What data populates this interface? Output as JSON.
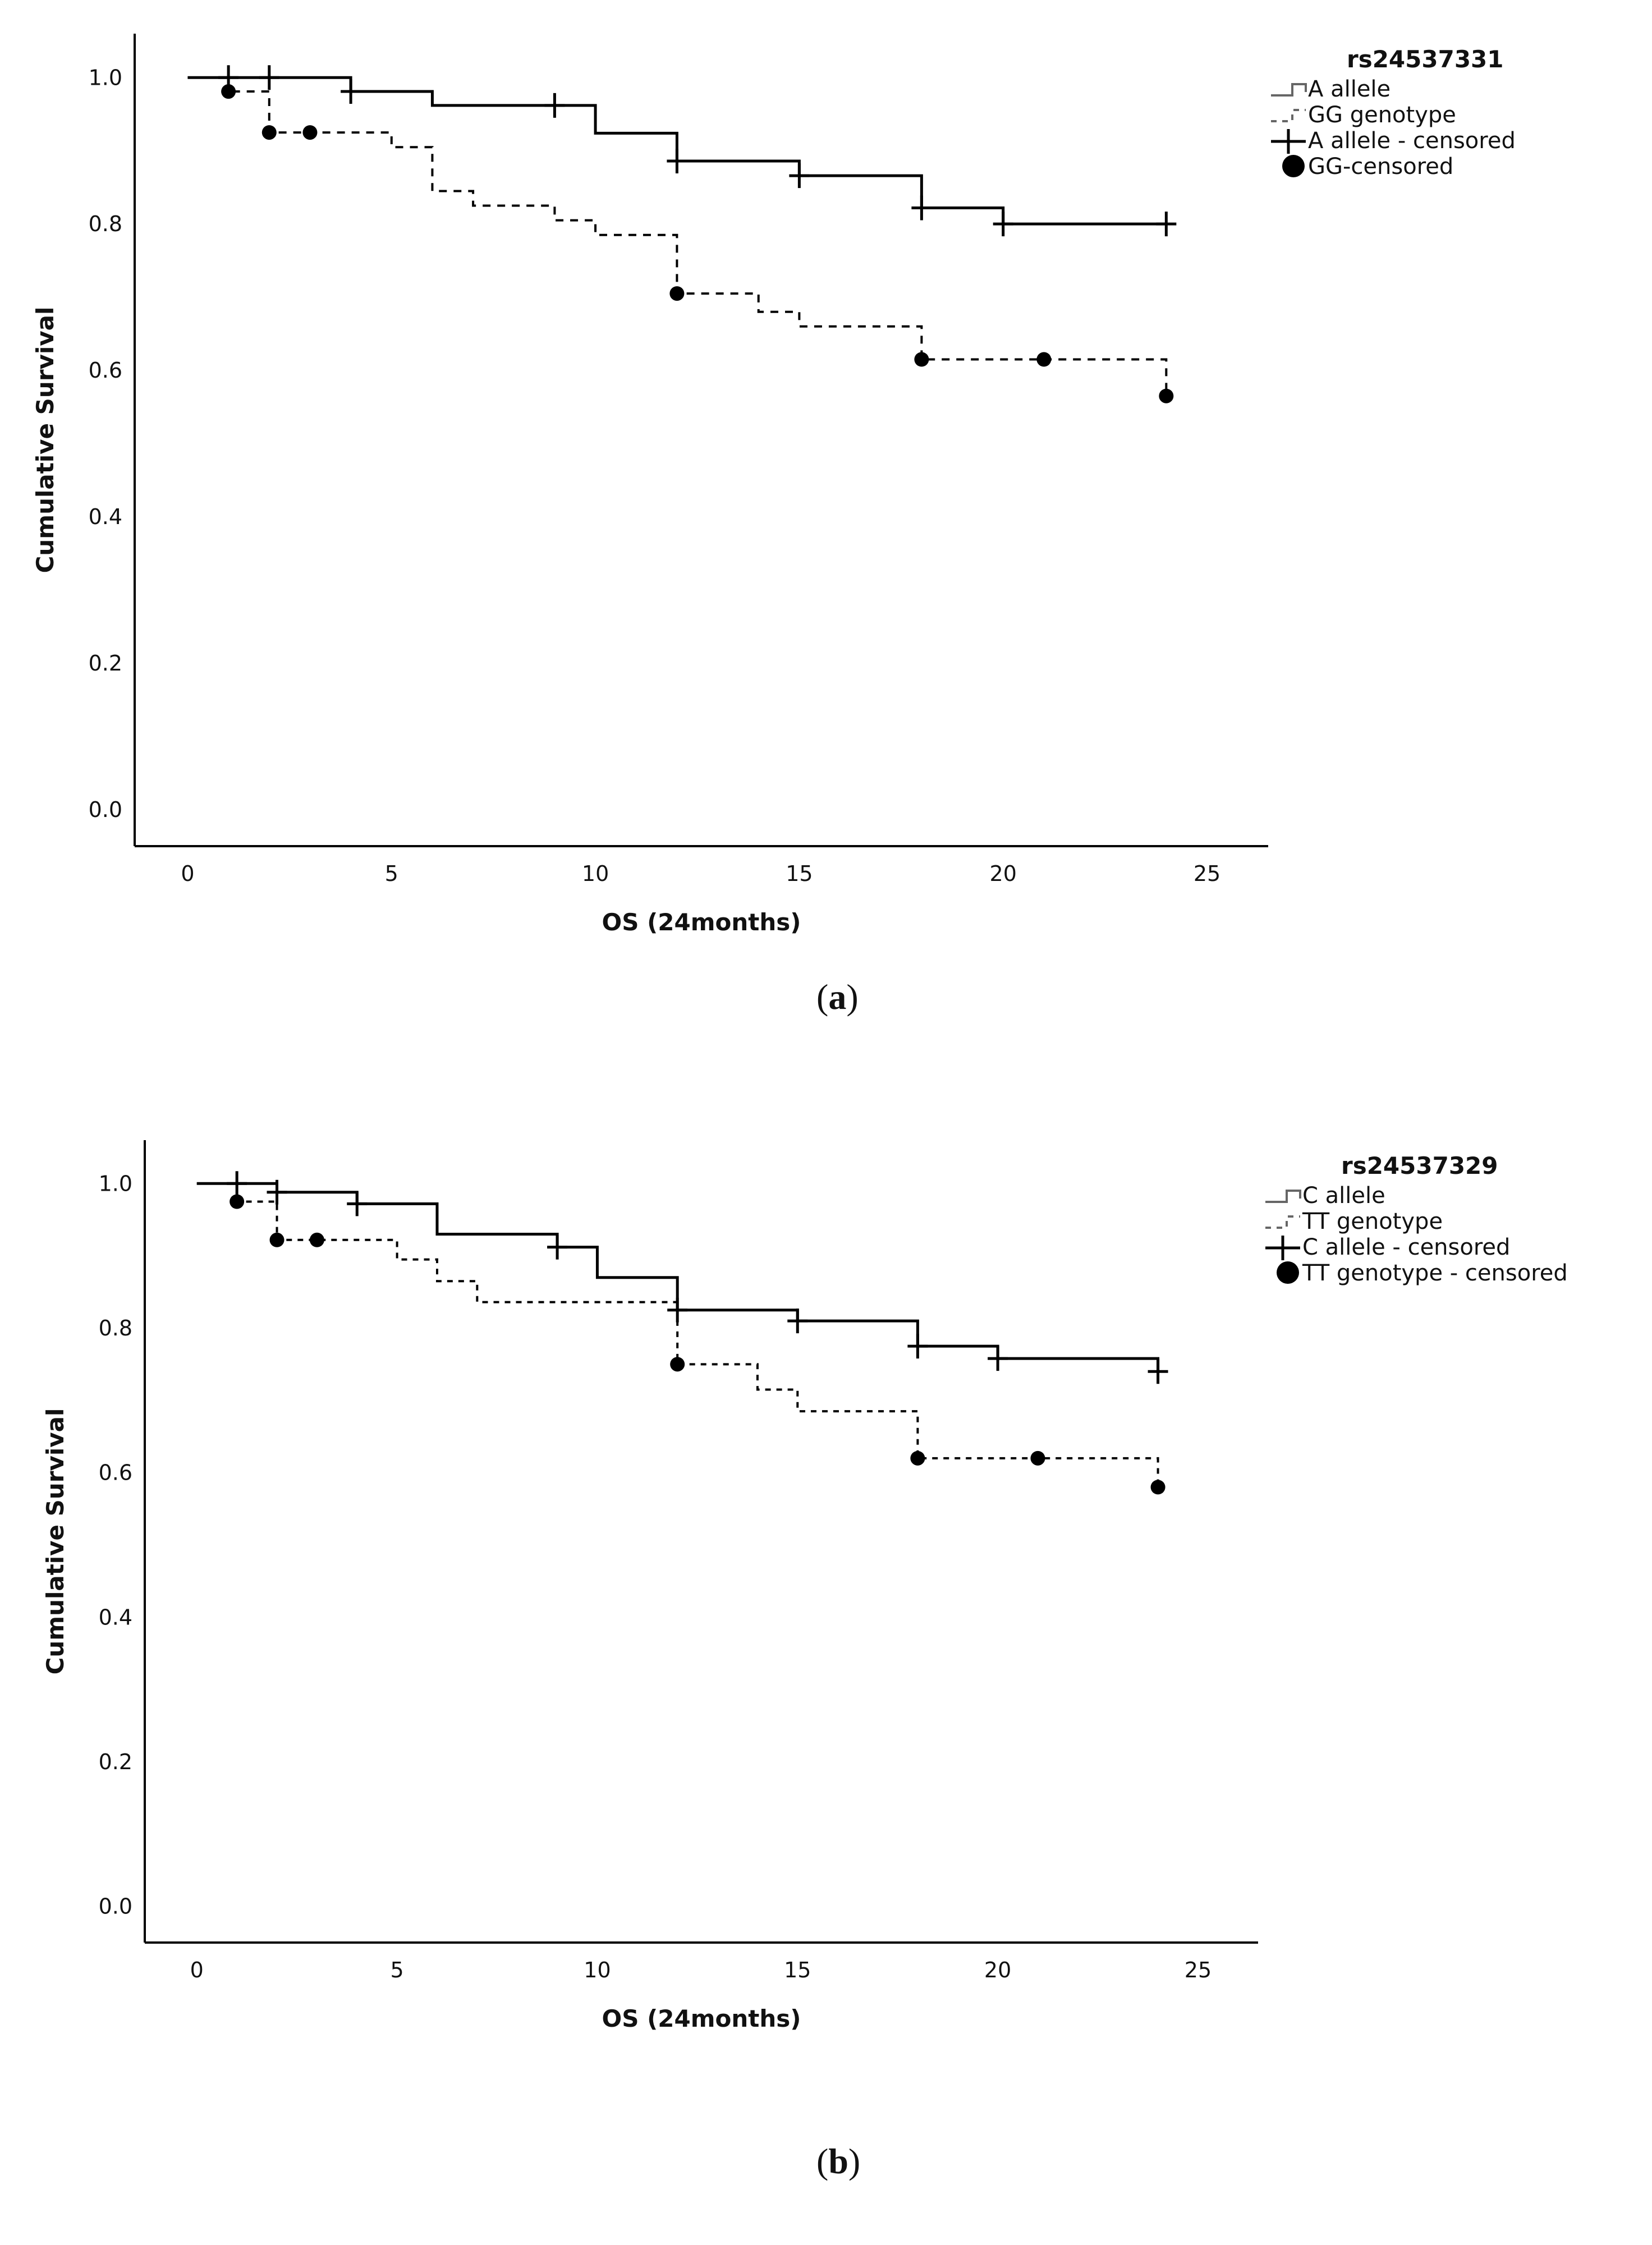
{
  "chart_data": [
    {
      "type": "line",
      "subtype": "kaplan-meier",
      "panel_label": "a",
      "legend_title": "rs24537331",
      "xlabel": "OS (24months)",
      "ylabel": "Cumulative Survival",
      "xlim": [
        -1.3,
        26.5
      ],
      "ylim": [
        -0.05,
        1.06
      ],
      "xticks": [
        0,
        5,
        10,
        15,
        20,
        25
      ],
      "yticks": [
        0.0,
        0.2,
        0.4,
        0.6,
        0.8,
        1.0
      ],
      "ytick_labels": [
        "0.0",
        "0.2",
        "0.4",
        "0.6",
        "0.8",
        "1.0"
      ],
      "legend": [
        "A allele",
        "GG genotype",
        "A allele - censored",
        "GG-censored"
      ],
      "series": [
        {
          "name": "A allele",
          "style": "solid",
          "steps": [
            [
              0,
              1.0
            ],
            [
              4,
              0.981
            ],
            [
              6,
              0.962
            ],
            [
              10,
              0.924
            ],
            [
              12,
              0.886
            ],
            [
              15,
              0.866
            ],
            [
              18,
              0.822
            ],
            [
              20,
              0.8
            ],
            [
              24,
              0.8
            ]
          ],
          "censored": [
            [
              1,
              1.0
            ],
            [
              2,
              1.0
            ],
            [
              4,
              0.981
            ],
            [
              9,
              0.962
            ],
            [
              12,
              0.886
            ],
            [
              15,
              0.866
            ],
            [
              18,
              0.822
            ],
            [
              20,
              0.8
            ],
            [
              24,
              0.8
            ]
          ]
        },
        {
          "name": "GG genotype",
          "style": "dashed",
          "steps": [
            [
              0,
              1.0
            ],
            [
              1,
              0.981
            ],
            [
              2,
              0.925
            ],
            [
              5,
              0.905
            ],
            [
              6,
              0.845
            ],
            [
              7,
              0.825
            ],
            [
              9,
              0.805
            ],
            [
              10,
              0.785
            ],
            [
              12,
              0.705
            ],
            [
              14,
              0.68
            ],
            [
              15,
              0.66
            ],
            [
              18,
              0.615
            ],
            [
              24,
              0.565
            ]
          ],
          "censored": [
            [
              1,
              0.981
            ],
            [
              2,
              0.925
            ],
            [
              3,
              0.925
            ],
            [
              12,
              0.705
            ],
            [
              18,
              0.615
            ],
            [
              21,
              0.615
            ],
            [
              24,
              0.565
            ]
          ]
        }
      ]
    },
    {
      "type": "line",
      "subtype": "kaplan-meier",
      "panel_label": "b",
      "legend_title": "rs24537329",
      "xlabel": "OS (24months)",
      "ylabel": "Cumulative Survival",
      "xlim": [
        -1.3,
        26.5
      ],
      "ylim": [
        -0.05,
        1.06
      ],
      "xticks": [
        0,
        5,
        10,
        15,
        20,
        25
      ],
      "yticks": [
        0.0,
        0.2,
        0.4,
        0.6,
        0.8,
        1.0
      ],
      "ytick_labels": [
        "0.0",
        "0.2",
        "0.4",
        "0.6",
        "0.8",
        "1.0"
      ],
      "legend": [
        "C allele",
        "TT genotype",
        "C allele - censored",
        "TT genotype - censored"
      ],
      "series": [
        {
          "name": "C allele",
          "style": "solid",
          "steps": [
            [
              0,
              1.0
            ],
            [
              2,
              0.988
            ],
            [
              4,
              0.972
            ],
            [
              6,
              0.93
            ],
            [
              9,
              0.912
            ],
            [
              10,
              0.87
            ],
            [
              12,
              0.825
            ],
            [
              15,
              0.81
            ],
            [
              18,
              0.775
            ],
            [
              20,
              0.758
            ],
            [
              24,
              0.74
            ]
          ],
          "censored": [
            [
              1,
              1.0
            ],
            [
              2,
              0.988
            ],
            [
              4,
              0.972
            ],
            [
              9,
              0.912
            ],
            [
              12,
              0.825
            ],
            [
              15,
              0.81
            ],
            [
              18,
              0.775
            ],
            [
              20,
              0.758
            ],
            [
              24,
              0.74
            ]
          ]
        },
        {
          "name": "TT genotype",
          "style": "dotted",
          "steps": [
            [
              0,
              1.0
            ],
            [
              1,
              0.975
            ],
            [
              2,
              0.922
            ],
            [
              5,
              0.895
            ],
            [
              6,
              0.865
            ],
            [
              7,
              0.836
            ],
            [
              12,
              0.75
            ],
            [
              14,
              0.715
            ],
            [
              15,
              0.685
            ],
            [
              18,
              0.62
            ],
            [
              24,
              0.58
            ]
          ],
          "censored": [
            [
              1,
              0.975
            ],
            [
              2,
              0.922
            ],
            [
              3,
              0.922
            ],
            [
              12,
              0.75
            ],
            [
              18,
              0.62
            ],
            [
              21,
              0.62
            ],
            [
              24,
              0.58
            ]
          ]
        }
      ]
    }
  ]
}
